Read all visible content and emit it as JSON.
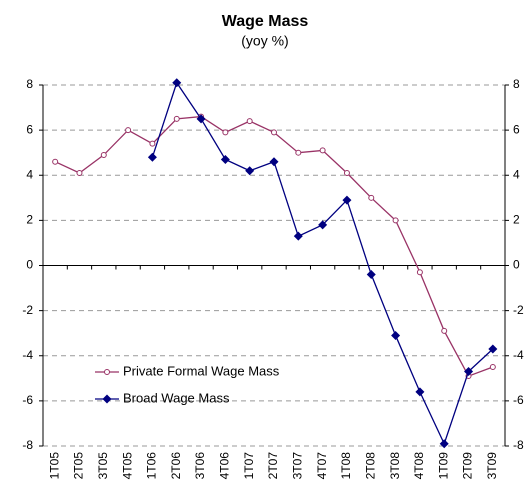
{
  "chart_data": {
    "type": "line",
    "title": "Wage Mass",
    "subtitle": "(yoy %)",
    "categories": [
      "1T05",
      "2T05",
      "3T05",
      "4T05",
      "1T06",
      "2T06",
      "3T06",
      "4T06",
      "1T07",
      "2T07",
      "3T07",
      "4T07",
      "1T08",
      "2T08",
      "3T08",
      "4T08",
      "1T09",
      "2T09",
      "3T09"
    ],
    "series": [
      {
        "name": "Private Formal Wage Mass",
        "color": "#993366",
        "marker": "circle",
        "values": [
          4.6,
          4.1,
          4.9,
          6.0,
          5.4,
          6.5,
          6.6,
          5.9,
          6.4,
          5.9,
          5.0,
          5.1,
          4.1,
          3.0,
          2.0,
          -0.3,
          -2.9,
          -4.9,
          -4.5
        ]
      },
      {
        "name": "Broad Wage Mass",
        "color": "#000080",
        "marker": "diamond",
        "values": [
          null,
          null,
          null,
          null,
          4.8,
          8.1,
          6.5,
          4.7,
          4.2,
          4.6,
          1.3,
          1.8,
          2.9,
          -0.4,
          -3.1,
          -5.6,
          -7.9,
          -4.7,
          -3.7
        ]
      }
    ],
    "ylim": [
      -8,
      8
    ],
    "yticks": [
      -8,
      -6,
      -4,
      -2,
      0,
      2,
      4,
      6,
      8
    ],
    "y2lim": [
      -8,
      8
    ],
    "y2ticks": [
      -8,
      -6,
      -4,
      -2,
      0,
      2,
      4,
      6,
      8
    ],
    "grid": true,
    "legend": "lower left"
  }
}
